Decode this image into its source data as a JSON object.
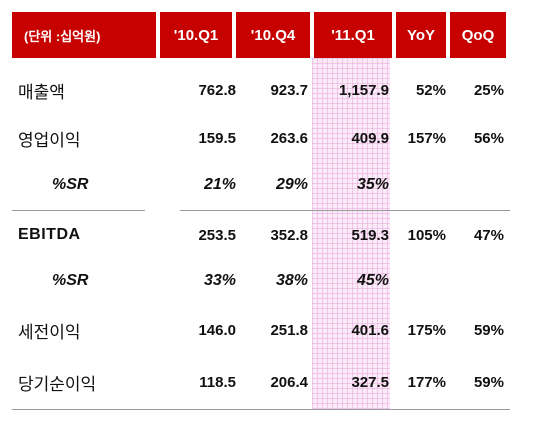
{
  "header": {
    "unit": "(단위 :십억원)",
    "columns": [
      "'10.Q1",
      "'10.Q4",
      "'11.Q1",
      "YoY",
      "QoQ"
    ]
  },
  "rows": [
    {
      "label": "매출액",
      "values": [
        "762.8",
        "923.7",
        "1,157.9",
        "52%",
        "25%"
      ]
    },
    {
      "label": "영업이익",
      "values": [
        "159.5",
        "263.6",
        "409.9",
        "157%",
        "56%"
      ]
    },
    {
      "label": "%SR",
      "values": [
        "21%",
        "29%",
        "35%",
        "",
        ""
      ]
    },
    {
      "label": "EBITDA",
      "values": [
        "253.5",
        "352.8",
        "519.3",
        "105%",
        "47%"
      ]
    },
    {
      "label": "%SR",
      "values": [
        "33%",
        "38%",
        "45%",
        "",
        ""
      ]
    },
    {
      "label": "세전이익",
      "values": [
        "146.0",
        "251.8",
        "401.6",
        "175%",
        "59%"
      ]
    },
    {
      "label": "당기순이익",
      "values": [
        "118.5",
        "206.4",
        "327.5",
        "177%",
        "59%"
      ]
    }
  ],
  "colors": {
    "header_bg": "#c70000",
    "header_text": "#ffffff",
    "highlight": "#fbeaf7"
  }
}
